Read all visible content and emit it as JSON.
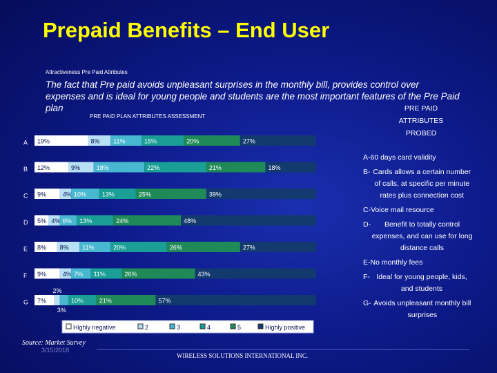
{
  "header": {
    "title": "Prepaid Benefits – End User",
    "subtitle": "Attractiveness Pre Paid Attributes",
    "intro": "The fact that Pre paid avoids unpleasant surprises in the monthly bill, provides control over expenses and is ideal for young people and students are the most important features of the Pre Paid plan"
  },
  "attributes_panel": {
    "heading_lines": [
      "PRE PAID",
      "ATTRIBUTES",
      "PROBED"
    ],
    "items": [
      {
        "code": "A-",
        "text": "60 days card validity"
      },
      {
        "code": "B-",
        "text": "Cards allows a certain number of calls, at specific per minute rates plus connection cost"
      },
      {
        "code": "C-",
        "text": "Voice mail resource"
      },
      {
        "code": "D-",
        "text": "Benefit to totally control expenses, and can use for long distance calls"
      },
      {
        "code": "E-",
        "text": "No monthly fees"
      },
      {
        "code": "F-",
        "text": "Ideal for young people, kids, and students"
      },
      {
        "code": "G-",
        "text": "Avoids unpleasant monthly bill surprises"
      }
    ]
  },
  "footer": {
    "source": "Source: Market Survey",
    "date": "3/15/2018",
    "company": "WIRELESS SOLUTIONS INTERNATIONAL INC."
  },
  "chart_data": {
    "type": "bar",
    "orientation": "horizontal-stacked-100",
    "title": "PRE PAID PLAN ATTRIBUTES ASSESSMENT",
    "categories": [
      "A",
      "B",
      "C",
      "D",
      "E",
      "F",
      "G"
    ],
    "series": [
      {
        "name": "Highly negative",
        "color": "#ffffff",
        "values": [
          19,
          12,
          9,
          5,
          8,
          9,
          7
        ],
        "labels": [
          "19%",
          "12%",
          "9%",
          "5%",
          "8%",
          "9%",
          "7%"
        ]
      },
      {
        "name": "2",
        "color": "#b8e0f4",
        "values": [
          8,
          9,
          4,
          4,
          8,
          4,
          2
        ],
        "labels": [
          "8%",
          "9%",
          "4%",
          "4%",
          "8%",
          "4%",
          "2%"
        ]
      },
      {
        "name": "3",
        "color": "#47b8d0",
        "values": [
          11,
          18,
          10,
          6,
          11,
          7,
          3
        ],
        "labels": [
          "11%",
          "18%",
          "10%",
          "6%",
          "11%",
          "7%",
          "3%"
        ]
      },
      {
        "name": "4",
        "color": "#1a9e96",
        "values": [
          15,
          22,
          13,
          13,
          20,
          11,
          10
        ],
        "labels": [
          "15%",
          "22%",
          "13%",
          "13%",
          "20%",
          "11%",
          "10%"
        ]
      },
      {
        "name": "5",
        "color": "#1f8a58",
        "values": [
          20,
          21,
          25,
          24,
          26,
          26,
          21
        ],
        "labels": [
          "20%",
          "21%",
          "25%",
          "24%",
          "26%",
          "26%",
          "21%"
        ]
      },
      {
        "name": "Highly positive",
        "color": "#123a6e",
        "values": [
          27,
          18,
          39,
          48,
          27,
          43,
          57
        ],
        "labels": [
          "27%",
          "18%",
          "39%",
          "48%",
          "27%",
          "43%",
          "57%"
        ]
      }
    ],
    "xlim": [
      0,
      100
    ],
    "legend_position": "bottom"
  }
}
